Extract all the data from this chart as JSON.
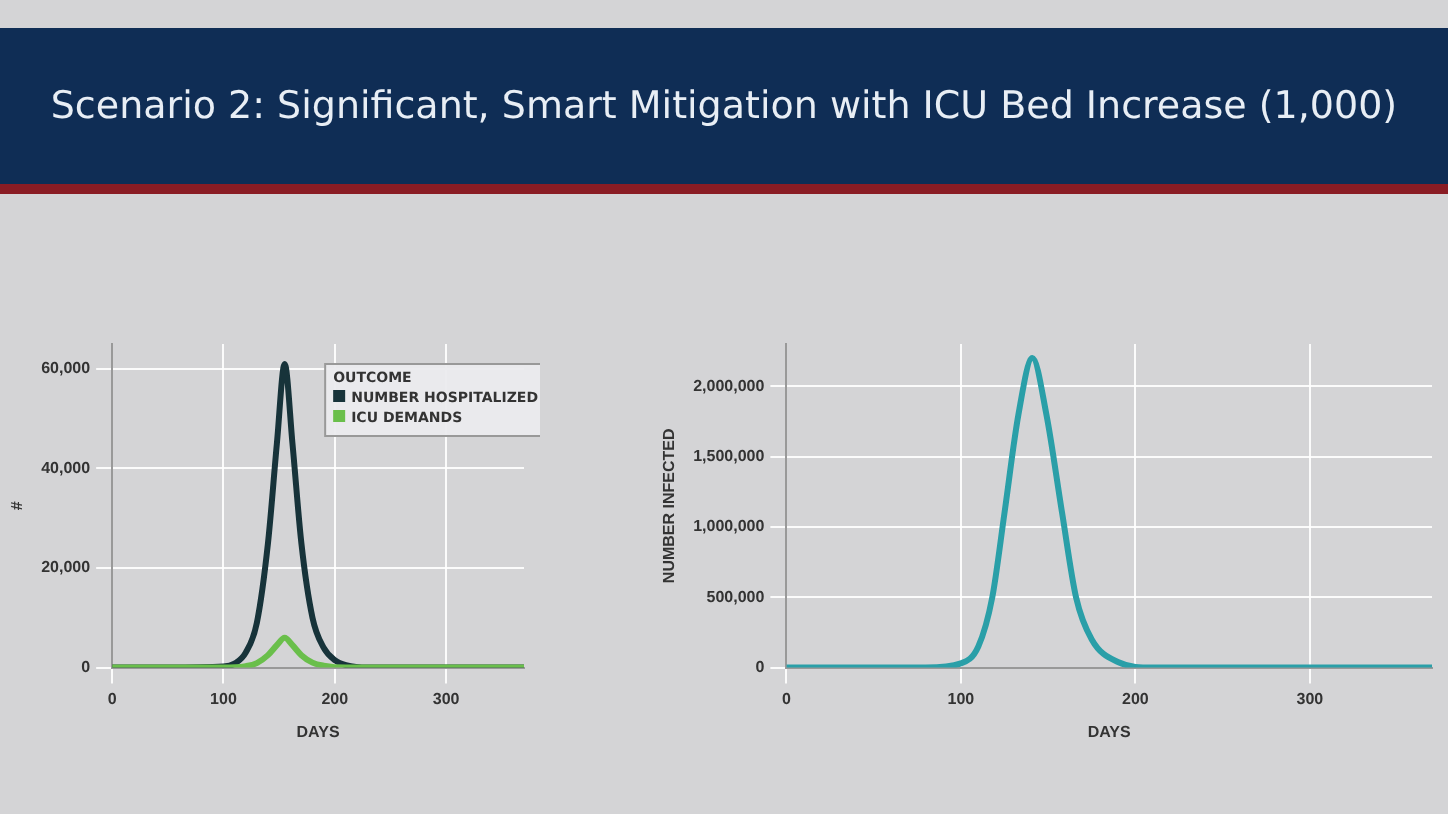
{
  "chart_data": [
    {
      "type": "line",
      "title": "Scenario 2: Significant, Smart Mitigation with ICU Bed Increase (1,000)",
      "xlabel": "DAYS",
      "ylabel": "#",
      "legend_title": "OUTCOME",
      "legend": "top right",
      "grid": true,
      "marker": "none",
      "xlim": [
        0,
        370
      ],
      "xticks": [
        0,
        100,
        200,
        300
      ],
      "ylim": [
        0,
        65000
      ],
      "yticks": [
        {
          "value": 0,
          "label": "0"
        },
        {
          "value": 20000,
          "label": "20,000"
        },
        {
          "value": 40000,
          "label": "40,000"
        },
        {
          "value": 60000,
          "label": "60,000"
        }
      ],
      "series": [
        {
          "name": "NUMBER HOSPITALIZED",
          "color": "#17333a",
          "x": [
            0,
            50,
            100,
            110,
            120,
            130,
            140,
            148,
            155,
            162,
            170,
            180,
            190,
            200,
            210,
            230,
            300,
            370
          ],
          "values": [
            0,
            0,
            200,
            800,
            3000,
            9000,
            25000,
            45000,
            61000,
            45000,
            25000,
            10000,
            4000,
            1500,
            500,
            0,
            0,
            0
          ]
        },
        {
          "name": "ICU DEMANDS",
          "color": "#6abf4b",
          "x": [
            0,
            100,
            120,
            130,
            140,
            148,
            155,
            162,
            170,
            180,
            190,
            210,
            230,
            370
          ],
          "values": [
            0,
            0,
            300,
            900,
            2500,
            4500,
            6000,
            4500,
            2500,
            1000,
            400,
            0,
            0,
            0
          ]
        }
      ]
    },
    {
      "type": "line",
      "xlabel": "DAYS",
      "ylabel": "NUMBER INFECTED",
      "grid": true,
      "marker": "none",
      "xlim": [
        0,
        370
      ],
      "xticks": [
        0,
        100,
        200,
        300
      ],
      "ylim": [
        0,
        2300000
      ],
      "yticks": [
        {
          "value": 0,
          "label": "0"
        },
        {
          "value": 500000,
          "label": "500,000"
        },
        {
          "value": 1000000,
          "label": "1,000,000"
        },
        {
          "value": 1500000,
          "label": "1,500,000"
        },
        {
          "value": 2000000,
          "label": "2,000,000"
        }
      ],
      "series": [
        {
          "color": "#2a9fa8",
          "x": [
            0,
            80,
            100,
            110,
            118,
            125,
            133,
            141,
            149,
            158,
            166,
            175,
            190,
            210,
            370
          ],
          "values": [
            0,
            0,
            30000,
            150000,
            500000,
            1100000,
            1800000,
            2200000,
            1800000,
            1100000,
            500000,
            200000,
            40000,
            0,
            0
          ]
        }
      ]
    }
  ]
}
